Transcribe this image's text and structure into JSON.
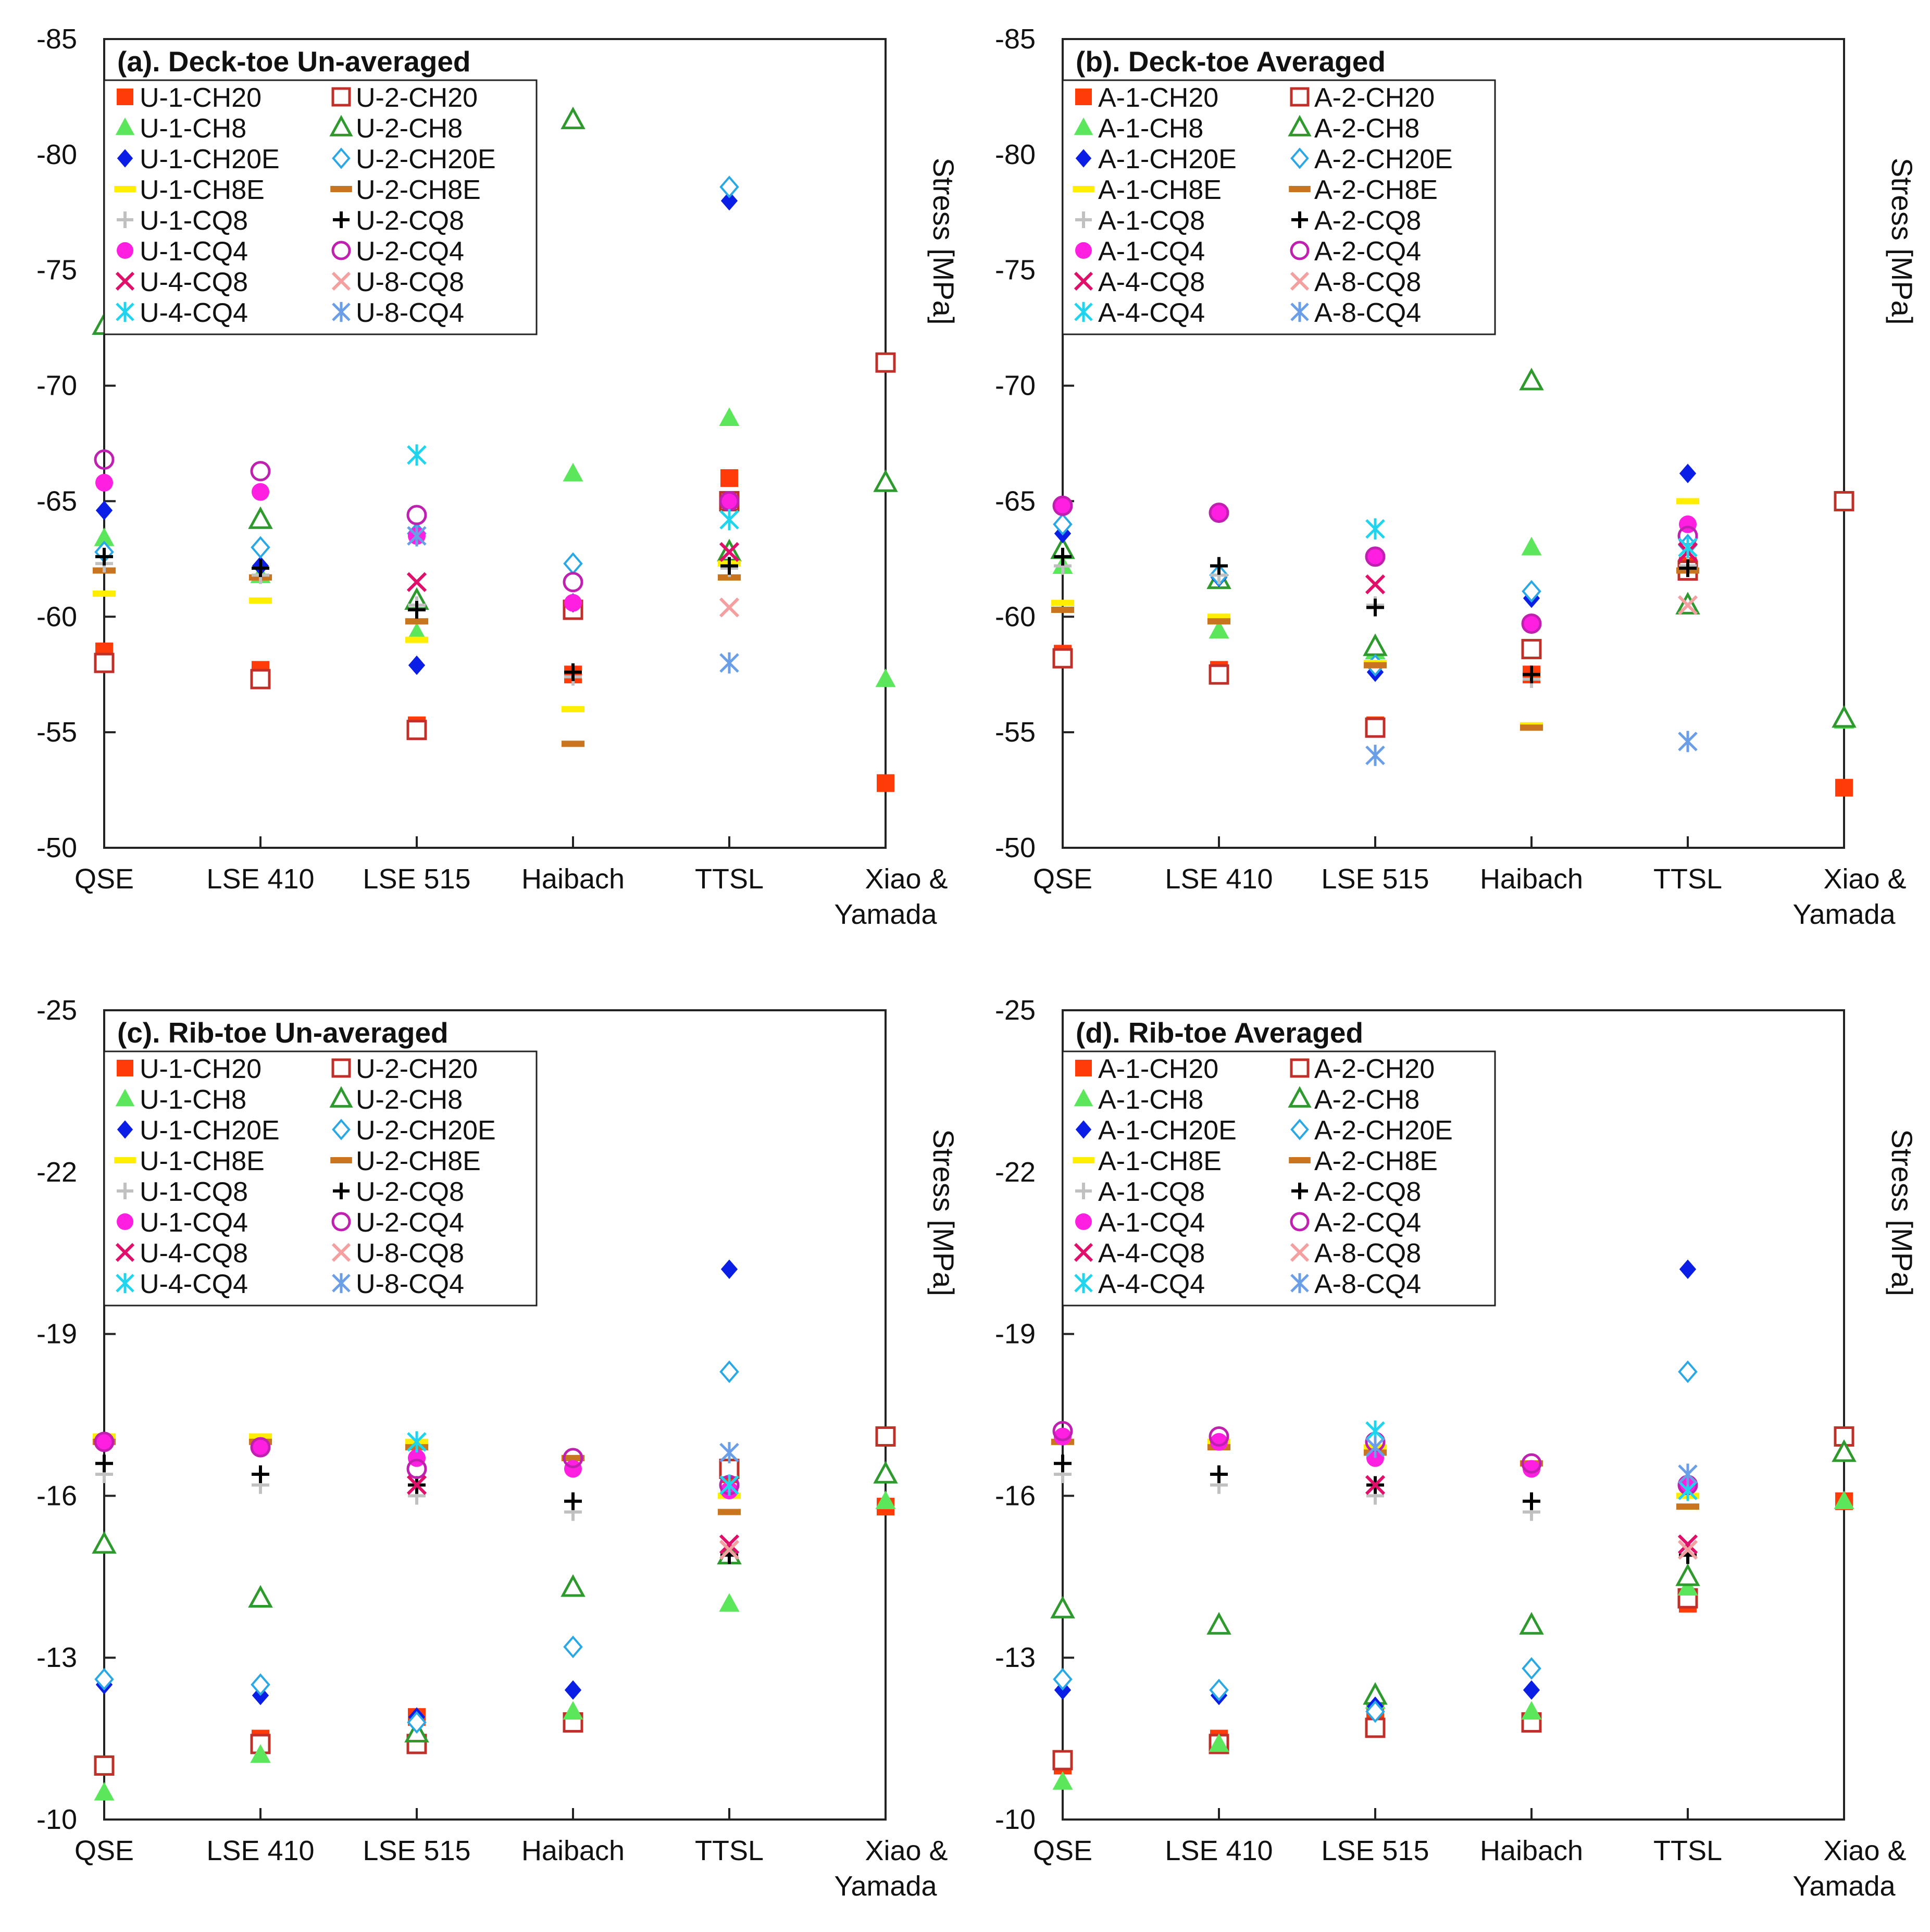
{
  "colors": {
    "CH20_1": "#ff3b0a",
    "CH20_2": "#c0302a",
    "CH8_1": "#5ce65c",
    "CH8_2": "#2e9a2e",
    "CH20E_1": "#0a1ee6",
    "CH20E_2": "#2aa8e6",
    "CH8E_1": "#ffee00",
    "CH8E_2": "#c9741e",
    "CQ8_1": "#c0c0c0",
    "CQ8_2": "#000000",
    "CQ4_1": "#ff1fe0",
    "CQ4_2": "#c020b0",
    "CQ8_4": "#e0106a",
    "CQ8_8": "#f4a0a0",
    "CQ4_4": "#20d4ee",
    "CQ4_8": "#6a9ee6"
  },
  "chart_data": [
    {
      "type": "scatter",
      "title": "(a). Deck-toe Un-averaged",
      "ylabel": "Stress [MPa]",
      "ylim": [
        -50,
        -85
      ],
      "yticks": [
        "-85",
        "-80",
        "-75",
        "-70",
        "-65",
        "-60",
        "-55",
        "-50"
      ],
      "categories": [
        "QSE",
        "LSE 410",
        "LSE 515",
        "Haibach",
        "TTSL",
        "Xiao & Yamada"
      ],
      "series": [
        {
          "name": "U-1-CH20",
          "marker": "square-filled",
          "color": "#ff3b0a",
          "values": [
            -58.5,
            -57.7,
            -55.3,
            -57.5,
            -66,
            -52.8
          ]
        },
        {
          "name": "U-2-CH20",
          "marker": "square-open",
          "color": "#c0302a",
          "values": [
            -58,
            -57.3,
            -55.1,
            -60.3,
            -65,
            -71
          ]
        },
        {
          "name": "U-1-CH8",
          "marker": "triangle-filled",
          "color": "#5ce65c",
          "values": [
            -63.4,
            -61.8,
            -59.3,
            -66.2,
            -68.6,
            -57.3
          ]
        },
        {
          "name": "U-2-CH8",
          "marker": "triangle-open",
          "color": "#2e9a2e",
          "values": [
            -72.6,
            -64.2,
            -60.7,
            -81.5,
            -62.8,
            -65.8
          ]
        },
        {
          "name": "U-1-CH20E",
          "marker": "diamond-filled",
          "color": "#0a1ee6",
          "values": [
            -64.6,
            -62.2,
            -57.9,
            -60.6,
            -78,
            null
          ]
        },
        {
          "name": "U-2-CH20E",
          "marker": "diamond-open",
          "color": "#2aa8e6",
          "values": [
            -62.8,
            -63,
            -63.6,
            -62.3,
            -78.6,
            null
          ]
        },
        {
          "name": "U-1-CH8E",
          "marker": "dash",
          "color": "#ffee00",
          "values": [
            -61,
            -60.7,
            -59,
            -56,
            -62.3,
            null
          ]
        },
        {
          "name": "U-2-CH8E",
          "marker": "dash",
          "color": "#c9741e",
          "values": [
            -62,
            -61.7,
            -59.8,
            -54.5,
            -61.7,
            null
          ]
        },
        {
          "name": "U-1-CQ8",
          "marker": "plus",
          "color": "#c0c0c0",
          "values": [
            -62.3,
            -61.8,
            -60.5,
            -57.4,
            -62.1,
            null
          ]
        },
        {
          "name": "U-2-CQ8",
          "marker": "plus",
          "color": "#000000",
          "values": [
            -62.6,
            -62.1,
            -60.3,
            -57.6,
            -62.2,
            null
          ]
        },
        {
          "name": "U-1-CQ4",
          "marker": "circle-filled",
          "color": "#ff1fe0",
          "values": [
            -65.8,
            -65.4,
            -63.5,
            -60.6,
            -65,
            null
          ]
        },
        {
          "name": "U-2-CQ4",
          "marker": "circle-open",
          "color": "#c020b0",
          "values": [
            -66.8,
            -66.3,
            -64.4,
            -61.5,
            -65,
            null
          ]
        },
        {
          "name": "U-4-CQ8",
          "marker": "x",
          "color": "#e0106a",
          "values": [
            null,
            null,
            -61.5,
            null,
            -62.8,
            null
          ]
        },
        {
          "name": "U-8-CQ8",
          "marker": "x",
          "color": "#f4a0a0",
          "values": [
            null,
            null,
            null,
            null,
            -60.4,
            null
          ]
        },
        {
          "name": "U-4-CQ4",
          "marker": "asterisk",
          "color": "#20d4ee",
          "values": [
            null,
            null,
            -67,
            null,
            -64.2,
            null
          ]
        },
        {
          "name": "U-8-CQ4",
          "marker": "asterisk",
          "color": "#6a9ee6",
          "values": [
            null,
            null,
            -63.5,
            null,
            -58,
            null
          ]
        }
      ]
    },
    {
      "type": "scatter",
      "title": "(b). Deck-toe Averaged",
      "ylabel": "Stress [MPa]",
      "ylim": [
        -50,
        -85
      ],
      "yticks": [
        "-85",
        "-80",
        "-75",
        "-70",
        "-65",
        "-60",
        "-55",
        "-50"
      ],
      "categories": [
        "QSE",
        "LSE 410",
        "LSE 515",
        "Haibach",
        "TTSL",
        "Xiao & Yamada"
      ],
      "series": [
        {
          "name": "A-1-CH20",
          "marker": "square-filled",
          "color": "#ff3b0a",
          "values": [
            -58.4,
            -57.7,
            -55.3,
            -57.5,
            -62.2,
            -52.6
          ]
        },
        {
          "name": "A-2-CH20",
          "marker": "square-open",
          "color": "#c0302a",
          "values": [
            -58.2,
            -57.5,
            -55.2,
            -58.6,
            -62,
            -65
          ]
        },
        {
          "name": "A-1-CH8",
          "marker": "triangle-filled",
          "color": "#5ce65c",
          "values": [
            -62.2,
            -59.4,
            -58.5,
            -63,
            -60.6,
            -55.5
          ]
        },
        {
          "name": "A-2-CH8",
          "marker": "triangle-open",
          "color": "#2e9a2e",
          "values": [
            -62.9,
            -61.6,
            -58.7,
            -70.2,
            -60.5,
            -55.6
          ]
        },
        {
          "name": "A-1-CH20E",
          "marker": "diamond-filled",
          "color": "#0a1ee6",
          "values": [
            -63.6,
            -61.7,
            -57.6,
            -60.8,
            -66.2,
            null
          ]
        },
        {
          "name": "A-2-CH20E",
          "marker": "diamond-open",
          "color": "#2aa8e6",
          "values": [
            -64,
            -61.8,
            -57.9,
            -61.1,
            -63.1,
            null
          ]
        },
        {
          "name": "A-1-CH8E",
          "marker": "dash",
          "color": "#ffee00",
          "values": [
            -60.6,
            -60,
            -58,
            -55.3,
            -65,
            null
          ]
        },
        {
          "name": "A-2-CH8E",
          "marker": "dash",
          "color": "#c9741e",
          "values": [
            -60.3,
            -59.8,
            -57.9,
            -55.2,
            -62,
            null
          ]
        },
        {
          "name": "A-1-CQ8",
          "marker": "plus",
          "color": "#c0c0c0",
          "values": [
            -62.2,
            -61.8,
            -60.5,
            -57.3,
            -62.2,
            null
          ]
        },
        {
          "name": "A-2-CQ8",
          "marker": "plus",
          "color": "#000000",
          "values": [
            -62.6,
            -62.2,
            -60.4,
            -57.5,
            -62.1,
            null
          ]
        },
        {
          "name": "A-1-CQ4",
          "marker": "circle-filled",
          "color": "#ff1fe0",
          "values": [
            -64.8,
            -64.5,
            -62.6,
            -59.7,
            -64,
            null
          ]
        },
        {
          "name": "A-2-CQ4",
          "marker": "circle-open",
          "color": "#c020b0",
          "values": [
            -64.8,
            -64.5,
            -62.6,
            -59.7,
            -63.5,
            null
          ]
        },
        {
          "name": "A-4-CQ8",
          "marker": "x",
          "color": "#e0106a",
          "values": [
            null,
            null,
            -61.4,
            null,
            -62.8,
            null
          ]
        },
        {
          "name": "A-8-CQ8",
          "marker": "x",
          "color": "#f4a0a0",
          "values": [
            null,
            null,
            null,
            null,
            -60.5,
            null
          ]
        },
        {
          "name": "A-4-CQ4",
          "marker": "asterisk",
          "color": "#20d4ee",
          "values": [
            null,
            null,
            -63.8,
            null,
            -63,
            null
          ]
        },
        {
          "name": "A-8-CQ4",
          "marker": "asterisk",
          "color": "#6a9ee6",
          "values": [
            null,
            null,
            -54,
            null,
            -54.6,
            null
          ]
        }
      ]
    },
    {
      "type": "scatter",
      "title": "(c). Rib-toe Un-averaged",
      "ylabel": "Stress [MPa]",
      "ylim": [
        -10,
        -25
      ],
      "yticks": [
        "-25",
        "-22",
        "-19",
        "-16",
        "-13",
        "-10"
      ],
      "categories": [
        "QSE",
        "LSE 410",
        "LSE 515",
        "Haibach",
        "TTSL",
        "Xiao & Yamada"
      ],
      "series": [
        {
          "name": "U-1-CH20",
          "marker": "square-filled",
          "color": "#ff3b0a",
          "values": [
            -11,
            -11.5,
            -11.9,
            -11.8,
            -16.4,
            -15.8
          ]
        },
        {
          "name": "U-2-CH20",
          "marker": "square-open",
          "color": "#c0302a",
          "values": [
            -11,
            -11.4,
            -11.4,
            -11.8,
            -16.5,
            -17.1
          ]
        },
        {
          "name": "U-1-CH8",
          "marker": "triangle-filled",
          "color": "#5ce65c",
          "values": [
            -10.5,
            -11.2,
            -11.6,
            -12,
            -14,
            -15.9
          ]
        },
        {
          "name": "U-2-CH8",
          "marker": "triangle-open",
          "color": "#2e9a2e",
          "values": [
            -15.1,
            -14.1,
            -11.6,
            -14.3,
            -14.9,
            -16.4
          ]
        },
        {
          "name": "U-1-CH20E",
          "marker": "diamond-filled",
          "color": "#0a1ee6",
          "values": [
            -12.5,
            -12.3,
            -11.9,
            -12.4,
            -20.2,
            null
          ]
        },
        {
          "name": "U-2-CH20E",
          "marker": "diamond-open",
          "color": "#2aa8e6",
          "values": [
            -12.6,
            -12.5,
            -11.8,
            -13.2,
            -18.3,
            null
          ]
        },
        {
          "name": "U-1-CH8E",
          "marker": "dash",
          "color": "#ffee00",
          "values": [
            -17.1,
            -17.1,
            -17,
            -16.7,
            -16,
            null
          ]
        },
        {
          "name": "U-2-CH8E",
          "marker": "dash",
          "color": "#c9741e",
          "values": [
            -17,
            -17,
            -16.9,
            -16.7,
            -15.7,
            null
          ]
        },
        {
          "name": "U-1-CQ8",
          "marker": "plus",
          "color": "#c0c0c0",
          "values": [
            -16.4,
            -16.2,
            -16,
            -15.7,
            -14.9,
            null
          ]
        },
        {
          "name": "U-2-CQ8",
          "marker": "plus",
          "color": "#000000",
          "values": [
            -16.6,
            -16.4,
            -16.2,
            -15.9,
            -14.9,
            null
          ]
        },
        {
          "name": "U-1-CQ4",
          "marker": "circle-filled",
          "color": "#ff1fe0",
          "values": [
            -17,
            -16.9,
            -16.7,
            -16.5,
            -16.1,
            null
          ]
        },
        {
          "name": "U-2-CQ4",
          "marker": "circle-open",
          "color": "#c020b0",
          "values": [
            -17,
            -16.9,
            -16.5,
            -16.7,
            -16.2,
            null
          ]
        },
        {
          "name": "U-4-CQ8",
          "marker": "x",
          "color": "#e0106a",
          "values": [
            null,
            null,
            -16.2,
            null,
            -15.1,
            null
          ]
        },
        {
          "name": "U-8-CQ8",
          "marker": "x",
          "color": "#f4a0a0",
          "values": [
            null,
            null,
            null,
            null,
            -15,
            null
          ]
        },
        {
          "name": "U-4-CQ4",
          "marker": "asterisk",
          "color": "#20d4ee",
          "values": [
            null,
            null,
            -17,
            null,
            -16.2,
            null
          ]
        },
        {
          "name": "U-8-CQ4",
          "marker": "asterisk",
          "color": "#6a9ee6",
          "values": [
            null,
            null,
            null,
            null,
            -16.8,
            null
          ]
        }
      ]
    },
    {
      "type": "scatter",
      "title": "(d). Rib-toe Averaged",
      "ylabel": "Stress [MPa]",
      "ylim": [
        -10,
        -25
      ],
      "yticks": [
        "-25",
        "-22",
        "-19",
        "-16",
        "-13",
        "-10"
      ],
      "categories": [
        "QSE",
        "LSE 410",
        "LSE 515",
        "Haibach",
        "TTSL",
        "Xiao & Yamada"
      ],
      "series": [
        {
          "name": "A-1-CH20",
          "marker": "square-filled",
          "color": "#ff3b0a",
          "values": [
            -11,
            -11.5,
            -12,
            -11.8,
            -14,
            -15.9
          ]
        },
        {
          "name": "A-2-CH20",
          "marker": "square-open",
          "color": "#c0302a",
          "values": [
            -11.1,
            -11.4,
            -11.7,
            -11.8,
            -14.1,
            -17.1
          ]
        },
        {
          "name": "A-1-CH8",
          "marker": "triangle-filled",
          "color": "#5ce65c",
          "values": [
            -10.7,
            -11.4,
            -12.2,
            -12,
            -14.3,
            -15.9
          ]
        },
        {
          "name": "A-2-CH8",
          "marker": "triangle-open",
          "color": "#2e9a2e",
          "values": [
            -13.9,
            -13.6,
            -12.3,
            -13.6,
            -14.5,
            -16.8
          ]
        },
        {
          "name": "A-1-CH20E",
          "marker": "diamond-filled",
          "color": "#0a1ee6",
          "values": [
            -12.4,
            -12.3,
            -12.1,
            -12.4,
            -20.2,
            null
          ]
        },
        {
          "name": "A-2-CH20E",
          "marker": "diamond-open",
          "color": "#2aa8e6",
          "values": [
            -12.6,
            -12.4,
            -12,
            -12.8,
            -18.3,
            null
          ]
        },
        {
          "name": "A-1-CH8E",
          "marker": "dash",
          "color": "#ffee00",
          "values": [
            -17,
            -17,
            -16.9,
            -16.6,
            -16,
            null
          ]
        },
        {
          "name": "A-2-CH8E",
          "marker": "dash",
          "color": "#c9741e",
          "values": [
            -17,
            -16.9,
            -16.8,
            -16.6,
            -15.8,
            null
          ]
        },
        {
          "name": "A-1-CQ8",
          "marker": "plus",
          "color": "#c0c0c0",
          "values": [
            -16.4,
            -16.2,
            -16,
            -15.7,
            -14.9,
            null
          ]
        },
        {
          "name": "A-2-CQ8",
          "marker": "plus",
          "color": "#000000",
          "values": [
            -16.6,
            -16.4,
            -16.2,
            -15.9,
            -14.9,
            null
          ]
        },
        {
          "name": "A-1-CQ4",
          "marker": "circle-filled",
          "color": "#ff1fe0",
          "values": [
            -17.1,
            -17,
            -16.7,
            -16.5,
            -16.2,
            null
          ]
        },
        {
          "name": "A-2-CQ4",
          "marker": "circle-open",
          "color": "#c020b0",
          "values": [
            -17.2,
            -17.1,
            -17,
            -16.6,
            -16.2,
            null
          ]
        },
        {
          "name": "A-4-CQ8",
          "marker": "x",
          "color": "#e0106a",
          "values": [
            null,
            null,
            -16.2,
            null,
            -15.1,
            null
          ]
        },
        {
          "name": "A-8-CQ8",
          "marker": "x",
          "color": "#f4a0a0",
          "values": [
            null,
            null,
            null,
            null,
            -15,
            null
          ]
        },
        {
          "name": "A-4-CQ4",
          "marker": "asterisk",
          "color": "#20d4ee",
          "values": [
            null,
            null,
            -17.2,
            null,
            -16.1,
            null
          ]
        },
        {
          "name": "A-8-CQ4",
          "marker": "asterisk",
          "color": "#6a9ee6",
          "values": [
            null,
            null,
            -16.9,
            null,
            -16.4,
            null
          ]
        }
      ]
    }
  ]
}
